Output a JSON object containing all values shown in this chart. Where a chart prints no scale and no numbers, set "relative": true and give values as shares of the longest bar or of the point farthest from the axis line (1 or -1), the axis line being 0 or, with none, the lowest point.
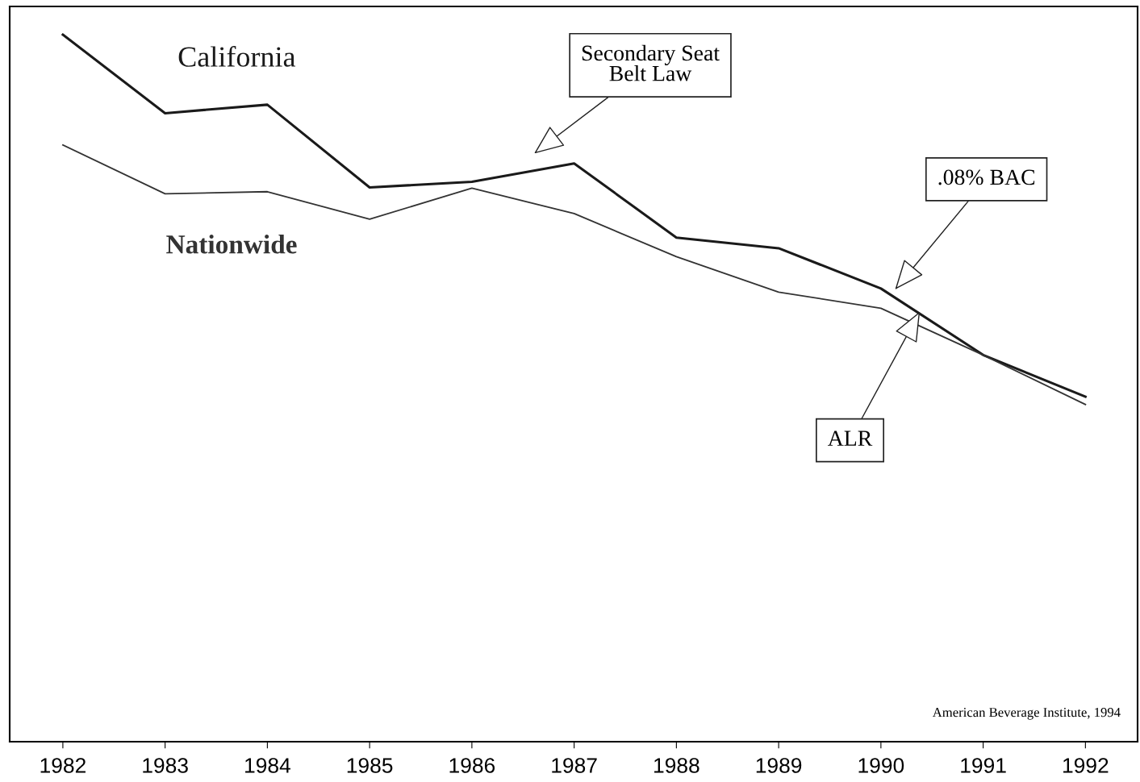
{
  "chart_data": {
    "type": "line",
    "relative": true,
    "categories": [
      "1982",
      "1983",
      "1984",
      "1985",
      "1986",
      "1987",
      "1988",
      "1989",
      "1990",
      "1991",
      "1992"
    ],
    "series": [
      {
        "name": "California",
        "color": "#1a1a1a",
        "values": [
          1,
          0.889,
          0.901,
          0.784,
          0.792,
          0.818,
          0.713,
          0.698,
          0.641,
          0.547,
          0.488
        ]
      },
      {
        "name": "Nationwide",
        "color": "#333333",
        "values": [
          0.844,
          0.775,
          0.778,
          0.739,
          0.783,
          0.747,
          0.686,
          0.636,
          0.613,
          0.547,
          0.477
        ]
      }
    ],
    "annotations": [
      "Secondary Seat\nBelt Law",
      ".08% BAC",
      "ALR",
      "American Beverage Institute, 1994"
    ],
    "grid": false,
    "legend": false,
    "marker": "none",
    "line_style": "solid"
  }
}
